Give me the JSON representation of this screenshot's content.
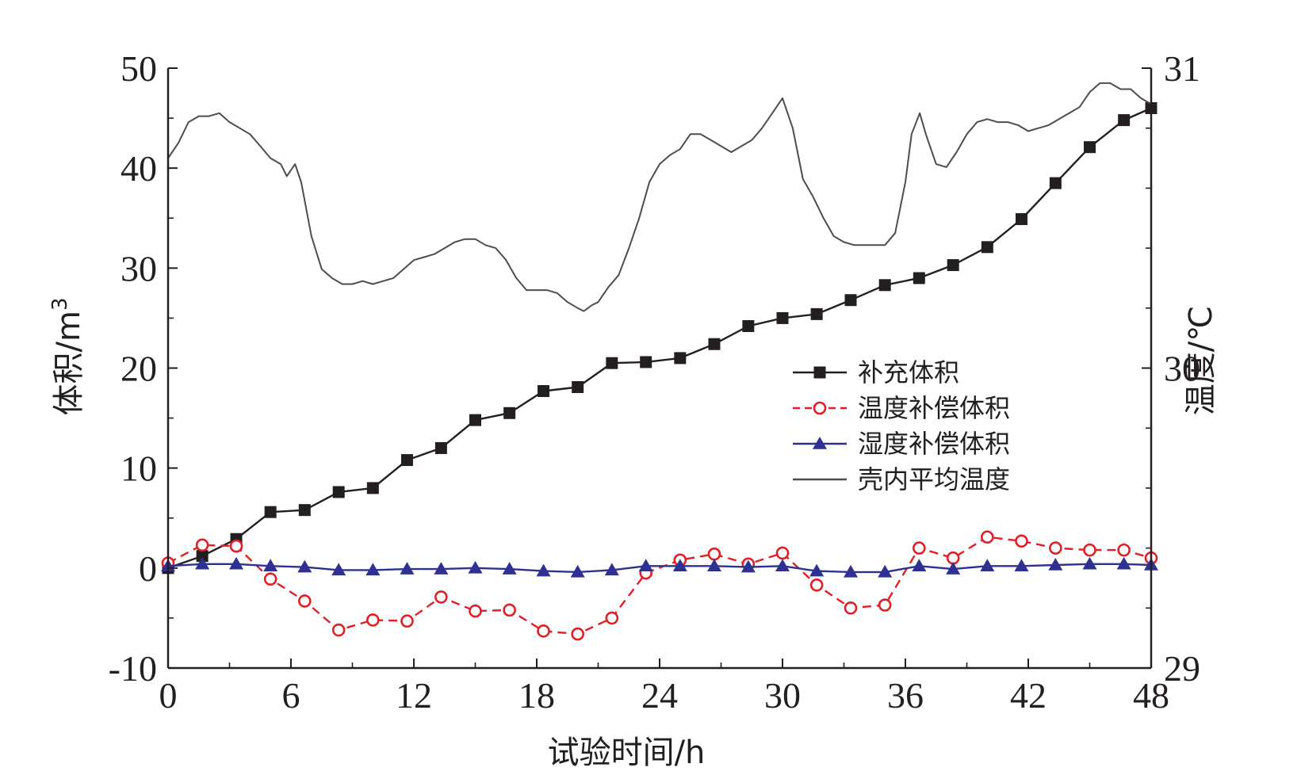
{
  "chart_data": {
    "type": "line",
    "title": "",
    "xlabel": "试验时间/h",
    "ylabel_left": "体积/m",
    "ylabel_left_sup": "3",
    "ylabel_right": "温度/℃",
    "xlim": [
      0,
      48
    ],
    "ylim_left": [
      -10,
      50
    ],
    "ylim_right": [
      29,
      31
    ],
    "x_ticks": [
      "0",
      "6",
      "12",
      "18",
      "24",
      "30",
      "36",
      "42",
      "48"
    ],
    "y_left_ticks": [
      "-10",
      "0",
      "10",
      "20",
      "30",
      "40",
      "50"
    ],
    "y_right_ticks": [
      "29",
      "30",
      "31"
    ],
    "legend_position": "center-right",
    "series": [
      {
        "name": "补充体积",
        "axis": "left",
        "color": "#231f20",
        "line_style": "solid",
        "marker": "square",
        "x": [
          0,
          1.67,
          3.33,
          5,
          6.67,
          8.33,
          10,
          11.67,
          13.33,
          15,
          16.67,
          18.33,
          20,
          21.67,
          23.33,
          25,
          26.67,
          28.33,
          30,
          31.67,
          33.33,
          35,
          36.67,
          38.33,
          40,
          41.67,
          43.33,
          45,
          46.67,
          48
        ],
        "values": [
          0,
          1.2,
          2.9,
          5.6,
          5.8,
          7.6,
          8,
          10.8,
          12,
          14.8,
          15.5,
          17.7,
          18.1,
          20.5,
          20.6,
          21,
          22.4,
          24.2,
          25,
          25.4,
          26.8,
          28.3,
          29,
          30.3,
          32.1,
          34.9,
          38.5,
          42.1,
          44.8,
          46
        ]
      },
      {
        "name": "温度补偿体积",
        "axis": "left",
        "color": "#e31e24",
        "line_style": "dashed",
        "marker": "circle-open",
        "x": [
          0,
          1.67,
          3.33,
          5,
          6.67,
          8.33,
          10,
          11.67,
          13.33,
          15,
          16.67,
          18.33,
          20,
          21.67,
          23.33,
          25,
          26.67,
          28.33,
          30,
          31.67,
          33.33,
          35,
          36.67,
          38.33,
          40,
          41.67,
          43.33,
          45,
          46.67,
          48
        ],
        "values": [
          0.5,
          2.3,
          2.2,
          -1.1,
          -3.3,
          -6.2,
          -5.2,
          -5.3,
          -2.9,
          -4.3,
          -4.2,
          -6.3,
          -6.6,
          -5,
          -0.5,
          0.8,
          1.4,
          0.4,
          1.5,
          -1.7,
          -4,
          -3.7,
          2,
          1,
          3.1,
          2.7,
          2,
          1.8,
          1.8,
          1
        ]
      },
      {
        "name": "湿度补偿体积",
        "axis": "left",
        "color": "#2e3192",
        "line_style": "solid",
        "marker": "triangle",
        "x": [
          0,
          1.67,
          3.33,
          5,
          6.67,
          8.33,
          10,
          11.67,
          13.33,
          15,
          16.67,
          18.33,
          20,
          21.67,
          23.33,
          25,
          26.67,
          28.33,
          30,
          31.67,
          33.33,
          35,
          36.67,
          38.33,
          40,
          41.67,
          43.33,
          45,
          46.67,
          48
        ],
        "values": [
          0.2,
          0.4,
          0.4,
          0.2,
          0.1,
          -0.2,
          -0.2,
          -0.1,
          -0.1,
          0,
          -0.1,
          -0.3,
          -0.4,
          -0.2,
          0.2,
          0.2,
          0.2,
          0.1,
          0.2,
          -0.3,
          -0.4,
          -0.4,
          0.2,
          -0.1,
          0.2,
          0.2,
          0.3,
          0.4,
          0.4,
          0.3
        ]
      },
      {
        "name": "壳内平均温度",
        "axis": "right",
        "color": "#4d4d4f",
        "line_style": "solid",
        "marker": "none",
        "x": [
          0,
          0.5,
          1,
          1.5,
          2,
          2.5,
          3,
          3.5,
          4,
          4.5,
          5,
          5.5,
          5.8,
          6.2,
          6.5,
          7,
          7.5,
          8,
          8.5,
          9,
          9.5,
          10,
          10.5,
          11,
          11.5,
          12,
          12.5,
          13,
          13.5,
          14,
          14.5,
          15,
          15.5,
          16,
          16.5,
          17,
          17.5,
          18,
          18.5,
          19,
          19.5,
          20,
          20.3,
          20.7,
          21,
          21.5,
          22,
          22.5,
          23,
          23.5,
          24,
          24.5,
          25,
          25.5,
          26,
          26.5,
          27,
          27.5,
          28,
          28.5,
          29,
          29.5,
          30,
          30.5,
          31,
          31.5,
          32,
          32.5,
          33,
          33.5,
          34,
          34.5,
          35,
          35.5,
          36,
          36.3,
          36.7,
          37,
          37.5,
          38,
          38.5,
          39,
          39.5,
          40,
          40.5,
          41,
          41.5,
          42,
          42.5,
          43,
          43.5,
          44,
          44.5,
          45,
          45.5,
          46,
          46.5,
          47,
          47.5,
          48
        ],
        "values": [
          30.7,
          30.75,
          30.82,
          30.84,
          30.84,
          30.85,
          30.82,
          30.8,
          30.78,
          30.74,
          30.7,
          30.68,
          30.64,
          30.68,
          30.62,
          30.44,
          30.33,
          30.3,
          30.28,
          30.28,
          30.29,
          30.28,
          30.29,
          30.3,
          30.33,
          30.36,
          30.37,
          30.38,
          30.4,
          30.42,
          30.43,
          30.43,
          30.41,
          30.4,
          30.36,
          30.3,
          30.26,
          30.26,
          30.26,
          30.25,
          30.22,
          30.2,
          30.19,
          30.21,
          30.22,
          30.27,
          30.31,
          30.4,
          30.5,
          30.62,
          30.68,
          30.71,
          30.73,
          30.78,
          30.78,
          30.76,
          30.74,
          30.72,
          30.74,
          30.76,
          30.8,
          30.85,
          30.9,
          30.8,
          30.63,
          30.57,
          30.5,
          30.44,
          30.42,
          30.41,
          30.41,
          30.41,
          30.41,
          30.45,
          30.62,
          30.78,
          30.85,
          30.78,
          30.68,
          30.67,
          30.72,
          30.78,
          30.82,
          30.83,
          30.82,
          30.82,
          30.81,
          30.79,
          30.8,
          30.81,
          30.83,
          30.85,
          30.87,
          30.92,
          30.95,
          30.95,
          30.93,
          30.93,
          30.9,
          30.88
        ]
      }
    ]
  }
}
